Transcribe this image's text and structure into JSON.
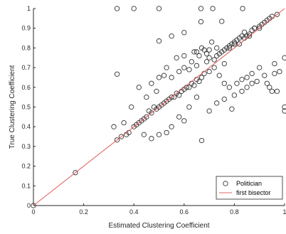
{
  "chart_data": {
    "type": "scatter",
    "xlabel": "Estimated Clustering Coefficient",
    "ylabel": "True Clustering Coefficient",
    "xlim": [
      0,
      1
    ],
    "ylim": [
      0,
      1
    ],
    "x_ticks": [
      0,
      0.2,
      0.4,
      0.6,
      0.8,
      1
    ],
    "x_tick_labels": [
      "0",
      "0.2",
      "0.4",
      "0.6",
      "0.8",
      "1"
    ],
    "y_ticks": [
      0,
      0.1,
      0.2,
      0.3,
      0.4,
      0.5,
      0.6,
      0.7,
      0.8,
      0.9,
      1
    ],
    "y_tick_labels": [
      "0",
      "0.1",
      "0.2",
      "0.3",
      "0.4",
      "0.5",
      "0.6",
      "0.7",
      "0.8",
      "0.9",
      "1"
    ],
    "grid": false,
    "legend_position": "bottom-right",
    "legend": [
      {
        "label": "Politician",
        "marker": "circle"
      },
      {
        "label": "first bisector",
        "marker": "line"
      }
    ],
    "colors": {
      "points": "#333333",
      "line": "#e06666",
      "axes": "#262626"
    },
    "series": [
      {
        "name": "Politician",
        "kind": "scatter",
        "points": [
          [
            0,
            0
          ],
          [
            0.167,
            0.167
          ],
          [
            0.333,
            0.333
          ],
          [
            0.333,
            1
          ],
          [
            0.4,
            1
          ],
          [
            0.5,
            1
          ],
          [
            0.667,
            1
          ],
          [
            0.714,
            1
          ],
          [
            0.833,
            1
          ],
          [
            0.333,
            0.667
          ],
          [
            0.667,
            0.933
          ],
          [
            0.75,
            0.935
          ],
          [
            0.6,
            0.878
          ],
          [
            0.55,
            0.86
          ],
          [
            0.5,
            0.835
          ],
          [
            0.6,
            0.76
          ],
          [
            0.65,
            0.78
          ],
          [
            0.7,
            0.75
          ],
          [
            0.73,
            0.8
          ],
          [
            0.76,
            0.72
          ],
          [
            0.78,
            0.8
          ],
          [
            0.8,
            0.82
          ],
          [
            0.82,
            0.85
          ],
          [
            0.84,
            0.85
          ],
          [
            0.86,
            0.86
          ],
          [
            0.88,
            0.9
          ],
          [
            0.9,
            0.9
          ],
          [
            0.92,
            0.93
          ],
          [
            0.94,
            0.95
          ],
          [
            0.95,
            0.96
          ],
          [
            0.97,
            0.97
          ],
          [
            1,
            0.75
          ],
          [
            1,
            0.5
          ],
          [
            1,
            0.48
          ],
          [
            0.95,
            0.58
          ],
          [
            0.96,
            0.67
          ],
          [
            0.9,
            0.7
          ],
          [
            0.93,
            0.62
          ],
          [
            0.87,
            0.62
          ],
          [
            0.85,
            0.65
          ],
          [
            0.83,
            0.64
          ],
          [
            0.8,
            0.56
          ],
          [
            0.78,
            0.6
          ],
          [
            0.76,
            0.62
          ],
          [
            0.74,
            0.66
          ],
          [
            0.72,
            0.7
          ],
          [
            0.7,
            0.68
          ],
          [
            0.69,
            0.73
          ],
          [
            0.68,
            0.67
          ],
          [
            0.67,
            0.65
          ],
          [
            0.66,
            0.63
          ],
          [
            0.65,
            0.64
          ],
          [
            0.64,
            0.61
          ],
          [
            0.63,
            0.62
          ],
          [
            0.62,
            0.6
          ],
          [
            0.61,
            0.6
          ],
          [
            0.6,
            0.59
          ],
          [
            0.59,
            0.58
          ],
          [
            0.58,
            0.56
          ],
          [
            0.57,
            0.57
          ],
          [
            0.56,
            0.55
          ],
          [
            0.55,
            0.55
          ],
          [
            0.54,
            0.54
          ],
          [
            0.53,
            0.53
          ],
          [
            0.52,
            0.52
          ],
          [
            0.51,
            0.51
          ],
          [
            0.5,
            0.5
          ],
          [
            0.49,
            0.49
          ],
          [
            0.48,
            0.5
          ],
          [
            0.47,
            0.47
          ],
          [
            0.46,
            0.48
          ],
          [
            0.45,
            0.45
          ],
          [
            0.44,
            0.44
          ],
          [
            0.43,
            0.43
          ],
          [
            0.42,
            0.42
          ],
          [
            0.41,
            0.41
          ],
          [
            0.4,
            0.4
          ],
          [
            0.38,
            0.37
          ],
          [
            0.37,
            0.36
          ],
          [
            0.35,
            0.35
          ],
          [
            0.32,
            0.4
          ],
          [
            0.36,
            0.42
          ],
          [
            0.39,
            0.5
          ],
          [
            0.42,
            0.6
          ],
          [
            0.45,
            0.55
          ],
          [
            0.47,
            0.62
          ],
          [
            0.49,
            0.58
          ],
          [
            0.5,
            0.65
          ],
          [
            0.52,
            0.66
          ],
          [
            0.53,
            0.7
          ],
          [
            0.55,
            0.65
          ],
          [
            0.57,
            0.75
          ],
          [
            0.58,
            0.68
          ],
          [
            0.6,
            0.7
          ],
          [
            0.62,
            0.69
          ],
          [
            0.63,
            0.73
          ],
          [
            0.64,
            0.78
          ],
          [
            0.65,
            0.71
          ],
          [
            0.66,
            0.76
          ],
          [
            0.67,
            0.8
          ],
          [
            0.68,
            0.79
          ],
          [
            0.69,
            0.77
          ],
          [
            0.7,
            0.79
          ],
          [
            0.71,
            0.83
          ],
          [
            0.72,
            0.74
          ],
          [
            0.73,
            0.76
          ],
          [
            0.74,
            0.77
          ],
          [
            0.75,
            0.78
          ],
          [
            0.76,
            0.79
          ],
          [
            0.77,
            0.8
          ],
          [
            0.78,
            0.81
          ],
          [
            0.79,
            0.82
          ],
          [
            0.8,
            0.83
          ],
          [
            0.81,
            0.84
          ],
          [
            0.82,
            0.82
          ],
          [
            0.83,
            0.86
          ],
          [
            0.84,
            0.88
          ],
          [
            0.85,
            0.86
          ],
          [
            0.86,
            0.87
          ],
          [
            0.87,
            0.89
          ],
          [
            0.88,
            0.9
          ],
          [
            0.9,
            0.91
          ],
          [
            0.91,
            0.92
          ],
          [
            0.93,
            0.94
          ],
          [
            0.44,
            0.36
          ],
          [
            0.47,
            0.34
          ],
          [
            0.5,
            0.36
          ],
          [
            0.53,
            0.37
          ],
          [
            0.55,
            0.4
          ],
          [
            0.58,
            0.45
          ],
          [
            0.6,
            0.43
          ],
          [
            0.62,
            0.5
          ],
          [
            0.65,
            0.55
          ],
          [
            0.67,
            0.33
          ],
          [
            0.7,
            0.48
          ],
          [
            0.73,
            0.52
          ],
          [
            0.76,
            0.54
          ],
          [
            0.79,
            0.49
          ],
          [
            0.81,
            0.62
          ],
          [
            0.83,
            0.58
          ],
          [
            0.85,
            0.6
          ],
          [
            0.87,
            0.67
          ],
          [
            0.89,
            0.63
          ],
          [
            0.92,
            0.66
          ],
          [
            0.94,
            0.6
          ],
          [
            0.97,
            0.58
          ],
          [
            0.98,
            0.68
          ],
          [
            0.96,
            0.72
          ]
        ]
      },
      {
        "name": "first bisector",
        "kind": "line",
        "points": [
          [
            0,
            0
          ],
          [
            1,
            1
          ]
        ]
      }
    ]
  }
}
